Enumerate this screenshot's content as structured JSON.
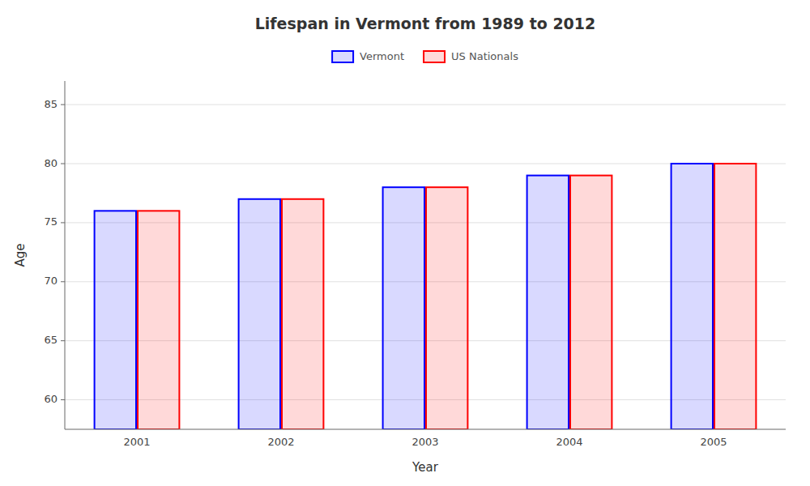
{
  "chart_data": {
    "type": "bar",
    "title": "Lifespan in Vermont from 1989 to 2012",
    "xlabel": "Year",
    "ylabel": "Age",
    "categories": [
      "2001",
      "2002",
      "2003",
      "2004",
      "2005"
    ],
    "series": [
      {
        "name": "Vermont",
        "color": "#0000ff",
        "values": [
          76.0,
          77.0,
          78.0,
          79.0,
          80.0
        ]
      },
      {
        "name": "US Nationals",
        "color": "#ff0000",
        "values": [
          76.0,
          77.0,
          78.0,
          79.0,
          80.0
        ]
      }
    ],
    "ylim": [
      57.5,
      87
    ],
    "yticks": [
      60,
      65,
      70,
      75,
      80,
      85
    ],
    "grid": true,
    "legend": "top"
  }
}
